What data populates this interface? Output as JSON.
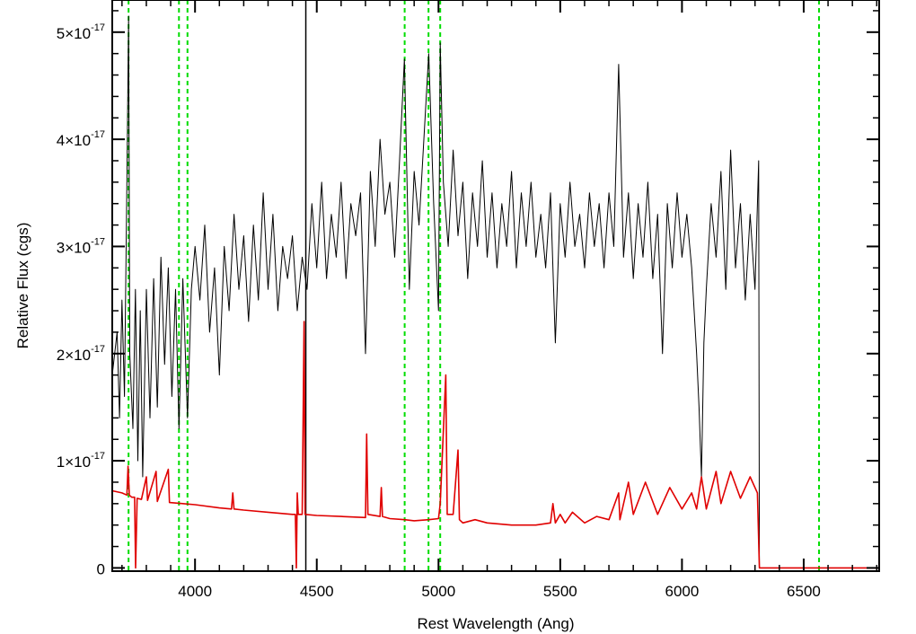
{
  "chart_data": {
    "type": "line",
    "title": "",
    "xlabel": "Rest Wavelength (Ang)",
    "ylabel": "Relative Flux (cgs)",
    "xlim": [
      3660,
      6810
    ],
    "ylim": [
      -3e-19,
      5.3e-17
    ],
    "grid": false,
    "legend": "none",
    "x_ticks": [
      {
        "value": 4000,
        "label": "4000"
      },
      {
        "value": 4500,
        "label": "4500"
      },
      {
        "value": 5000,
        "label": "5000"
      },
      {
        "value": 5500,
        "label": "5500"
      },
      {
        "value": 6000,
        "label": "6000"
      },
      {
        "value": 6500,
        "label": "6500"
      }
    ],
    "y_ticks": [
      {
        "value": 0,
        "mantissa": "0",
        "exponent": ""
      },
      {
        "value": 1e-17,
        "mantissa": "1×10",
        "exponent": "-17"
      },
      {
        "value": 2e-17,
        "mantissa": "2×10",
        "exponent": "-17"
      },
      {
        "value": 3e-17,
        "mantissa": "3×10",
        "exponent": "-17"
      },
      {
        "value": 4e-17,
        "mantissa": "4×10",
        "exponent": "-17"
      },
      {
        "value": 5e-17,
        "mantissa": "5×10",
        "exponent": "-17"
      }
    ],
    "reference_lines": {
      "color": "#00dd00",
      "style": "dashed",
      "x": [
        3727,
        3934,
        3969,
        4861,
        4959,
        5007,
        6563
      ]
    },
    "series": [
      {
        "color": "#000000",
        "points": [
          [
            3660,
            1.8e-17
          ],
          [
            3680,
            2.2e-17
          ],
          [
            3690,
            1.4e-17
          ],
          [
            3700,
            2.5e-17
          ],
          [
            3710,
            1.6e-17
          ],
          [
            3720,
            3.6e-17
          ],
          [
            3727,
            5.15e-17
          ],
          [
            3732,
            2e-17
          ],
          [
            3745,
            1.3e-17
          ],
          [
            3755,
            2.6e-17
          ],
          [
            3765,
            1e-17
          ],
          [
            3775,
            2.4e-17
          ],
          [
            3785,
            8.5e-18
          ],
          [
            3800,
            2.6e-17
          ],
          [
            3815,
            1.4e-17
          ],
          [
            3830,
            2.7e-17
          ],
          [
            3845,
            1.5e-17
          ],
          [
            3860,
            2.9e-17
          ],
          [
            3875,
            1.9e-17
          ],
          [
            3890,
            2.8e-17
          ],
          [
            3905,
            1.6e-17
          ],
          [
            3920,
            2.6e-17
          ],
          [
            3934,
            1.3e-17
          ],
          [
            3950,
            2.7e-17
          ],
          [
            3969,
            1.4e-17
          ],
          [
            3985,
            2.6e-17
          ],
          [
            4000,
            3e-17
          ],
          [
            4020,
            2.5e-17
          ],
          [
            4040,
            3.2e-17
          ],
          [
            4060,
            2.2e-17
          ],
          [
            4080,
            2.8e-17
          ],
          [
            4100,
            1.8e-17
          ],
          [
            4120,
            3e-17
          ],
          [
            4140,
            2.4e-17
          ],
          [
            4160,
            3.3e-17
          ],
          [
            4180,
            2.6e-17
          ],
          [
            4200,
            3.1e-17
          ],
          [
            4220,
            2.3e-17
          ],
          [
            4240,
            3.2e-17
          ],
          [
            4260,
            2.5e-17
          ],
          [
            4280,
            3.5e-17
          ],
          [
            4300,
            2.6e-17
          ],
          [
            4320,
            3.3e-17
          ],
          [
            4340,
            2.4e-17
          ],
          [
            4360,
            3e-17
          ],
          [
            4380,
            2.7e-17
          ],
          [
            4400,
            3.1e-17
          ],
          [
            4420,
            2.4e-17
          ],
          [
            4440,
            2.9e-17
          ],
          [
            4460,
            2.6e-17
          ],
          [
            4480,
            3.4e-17
          ],
          [
            4500,
            2.8e-17
          ],
          [
            4520,
            3.6e-17
          ],
          [
            4540,
            2.7e-17
          ],
          [
            4560,
            3.3e-17
          ],
          [
            4580,
            2.9e-17
          ],
          [
            4600,
            3.6e-17
          ],
          [
            4620,
            2.7e-17
          ],
          [
            4640,
            3.4e-17
          ],
          [
            4660,
            3.1e-17
          ],
          [
            4680,
            3.5e-17
          ],
          [
            4700,
            2e-17
          ],
          [
            4720,
            3.7e-17
          ],
          [
            4740,
            3e-17
          ],
          [
            4760,
            4e-17
          ],
          [
            4780,
            3.3e-17
          ],
          [
            4800,
            3.6e-17
          ],
          [
            4820,
            2.9e-17
          ],
          [
            4840,
            3.8e-17
          ],
          [
            4860,
            4.75e-17
          ],
          [
            4880,
            2.6e-17
          ],
          [
            4900,
            3.7e-17
          ],
          [
            4920,
            3.2e-17
          ],
          [
            4940,
            4e-17
          ],
          [
            4960,
            4.8e-17
          ],
          [
            4980,
            3.4e-17
          ],
          [
            5000,
            2.4e-17
          ],
          [
            5007,
            4.9e-17
          ],
          [
            5020,
            3.6e-17
          ],
          [
            5040,
            3e-17
          ],
          [
            5060,
            3.9e-17
          ],
          [
            5080,
            3.1e-17
          ],
          [
            5100,
            3.6e-17
          ],
          [
            5120,
            2.7e-17
          ],
          [
            5140,
            3.5e-17
          ],
          [
            5160,
            3e-17
          ],
          [
            5180,
            3.8e-17
          ],
          [
            5200,
            2.9e-17
          ],
          [
            5220,
            3.5e-17
          ],
          [
            5240,
            2.8e-17
          ],
          [
            5260,
            3.4e-17
          ],
          [
            5280,
            3e-17
          ],
          [
            5300,
            3.7e-17
          ],
          [
            5320,
            2.8e-17
          ],
          [
            5340,
            3.5e-17
          ],
          [
            5360,
            3e-17
          ],
          [
            5380,
            3.6e-17
          ],
          [
            5400,
            2.9e-17
          ],
          [
            5420,
            3.3e-17
          ],
          [
            5440,
            2.8e-17
          ],
          [
            5460,
            3.5e-17
          ],
          [
            5480,
            2.1e-17
          ],
          [
            5500,
            3.4e-17
          ],
          [
            5520,
            2.9e-17
          ],
          [
            5540,
            3.6e-17
          ],
          [
            5560,
            3e-17
          ],
          [
            5580,
            3.3e-17
          ],
          [
            5600,
            2.8e-17
          ],
          [
            5620,
            3.5e-17
          ],
          [
            5640,
            3e-17
          ],
          [
            5660,
            3.4e-17
          ],
          [
            5680,
            2.8e-17
          ],
          [
            5700,
            3.5e-17
          ],
          [
            5720,
            3e-17
          ],
          [
            5740,
            4.7e-17
          ],
          [
            5760,
            2.9e-17
          ],
          [
            5780,
            3.5e-17
          ],
          [
            5800,
            2.7e-17
          ],
          [
            5820,
            3.4e-17
          ],
          [
            5840,
            2.9e-17
          ],
          [
            5860,
            3.6e-17
          ],
          [
            5880,
            2.7e-17
          ],
          [
            5900,
            3.3e-17
          ],
          [
            5920,
            2e-17
          ],
          [
            5940,
            3.4e-17
          ],
          [
            5960,
            2.8e-17
          ],
          [
            5980,
            3.5e-17
          ],
          [
            6000,
            2.9e-17
          ],
          [
            6020,
            3.3e-17
          ],
          [
            6040,
            2.8e-17
          ],
          [
            6060,
            2e-17
          ],
          [
            6070,
            1.5e-17
          ],
          [
            6080,
            8.5e-18
          ],
          [
            6090,
            2.1e-17
          ],
          [
            6100,
            2.6e-17
          ],
          [
            6120,
            3.4e-17
          ],
          [
            6140,
            2.9e-17
          ],
          [
            6160,
            3.7e-17
          ],
          [
            6180,
            2.6e-17
          ],
          [
            6200,
            3.9e-17
          ],
          [
            6220,
            2.8e-17
          ],
          [
            6240,
            3.4e-17
          ],
          [
            6260,
            2.5e-17
          ],
          [
            6280,
            3.3e-17
          ],
          [
            6300,
            2.6e-17
          ],
          [
            6315,
            3.8e-17
          ],
          [
            6318,
            0
          ]
        ]
      },
      {
        "color": "#e00000",
        "points": [
          [
            3660,
            7.2e-18
          ],
          [
            3700,
            7e-18
          ],
          [
            3720,
            6.8e-18
          ],
          [
            3725,
            9.5e-18
          ],
          [
            3730,
            6.8e-18
          ],
          [
            3740,
            6.6e-18
          ],
          [
            3752,
            6.6e-18
          ],
          [
            3756,
            0
          ],
          [
            3762,
            6.5e-18
          ],
          [
            3780,
            6.4e-18
          ],
          [
            3800,
            8.5e-18
          ],
          [
            3805,
            6.3e-18
          ],
          [
            3840,
            9e-18
          ],
          [
            3845,
            6.2e-18
          ],
          [
            3890,
            9.2e-18
          ],
          [
            3895,
            6.1e-18
          ],
          [
            3950,
            6e-18
          ],
          [
            4000,
            5.9e-18
          ],
          [
            4100,
            5.6e-18
          ],
          [
            4150,
            5.5e-18
          ],
          [
            4155,
            7e-18
          ],
          [
            4160,
            5.5e-18
          ],
          [
            4200,
            5.4e-18
          ],
          [
            4300,
            5.2e-18
          ],
          [
            4400,
            5e-18
          ],
          [
            4412,
            5e-18
          ],
          [
            4416,
            0
          ],
          [
            4420,
            7e-18
          ],
          [
            4424,
            5e-18
          ],
          [
            4440,
            5e-18
          ],
          [
            4448,
            2.3e-17
          ],
          [
            4452,
            5e-18
          ],
          [
            4500,
            4.9e-18
          ],
          [
            4600,
            4.8e-18
          ],
          [
            4700,
            4.7e-18
          ],
          [
            4705,
            1.25e-17
          ],
          [
            4710,
            5e-18
          ],
          [
            4760,
            4.8e-18
          ],
          [
            4765,
            7.5e-18
          ],
          [
            4770,
            4.8e-18
          ],
          [
            4800,
            4.6e-18
          ],
          [
            4861,
            4.5e-18
          ],
          [
            4900,
            4.4e-18
          ],
          [
            4960,
            4.5e-18
          ],
          [
            5000,
            4.6e-18
          ],
          [
            5007,
            6e-18
          ],
          [
            5030,
            1.8e-17
          ],
          [
            5036,
            5e-18
          ],
          [
            5060,
            5e-18
          ],
          [
            5080,
            1.1e-17
          ],
          [
            5086,
            4.5e-18
          ],
          [
            5100,
            4.2e-18
          ],
          [
            5150,
            4.5e-18
          ],
          [
            5200,
            4.2e-18
          ],
          [
            5300,
            4e-18
          ],
          [
            5400,
            4e-18
          ],
          [
            5460,
            4.2e-18
          ],
          [
            5470,
            6e-18
          ],
          [
            5480,
            4.2e-18
          ],
          [
            5500,
            5e-18
          ],
          [
            5520,
            4.2e-18
          ],
          [
            5550,
            5.2e-18
          ],
          [
            5600,
            4.2e-18
          ],
          [
            5650,
            4.8e-18
          ],
          [
            5700,
            4.5e-18
          ],
          [
            5740,
            7e-18
          ],
          [
            5745,
            4.5e-18
          ],
          [
            5780,
            8e-18
          ],
          [
            5800,
            5e-18
          ],
          [
            5850,
            8e-18
          ],
          [
            5900,
            5e-18
          ],
          [
            5950,
            7.5e-18
          ],
          [
            6000,
            5.5e-18
          ],
          [
            6040,
            7e-18
          ],
          [
            6060,
            5.5e-18
          ],
          [
            6080,
            8.5e-18
          ],
          [
            6100,
            5.5e-18
          ],
          [
            6140,
            9e-18
          ],
          [
            6160,
            6e-18
          ],
          [
            6200,
            9e-18
          ],
          [
            6240,
            6.5e-18
          ],
          [
            6280,
            8.5e-18
          ],
          [
            6310,
            7e-18
          ],
          [
            6318,
            0
          ],
          [
            6810,
            0
          ]
        ]
      }
    ]
  }
}
